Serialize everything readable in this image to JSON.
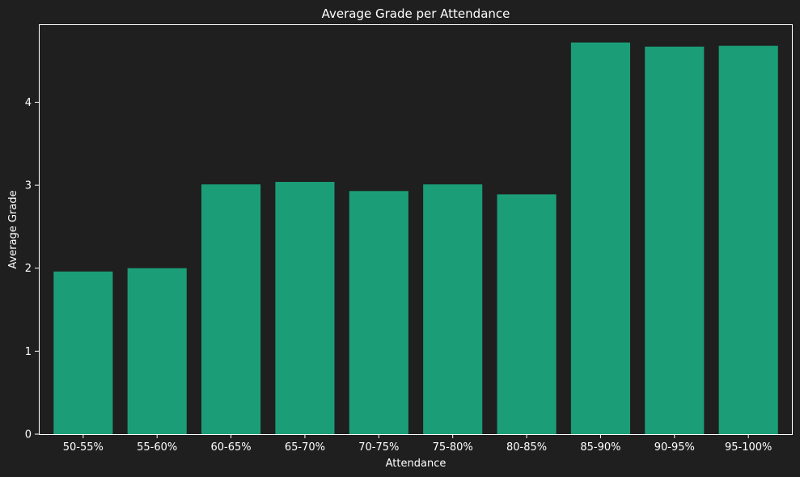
{
  "chart_data": {
    "type": "bar",
    "title": "Average Grade per Attendance",
    "xlabel": "Attendance",
    "ylabel": "Average Grade",
    "categories": [
      "50-55%",
      "55-60%",
      "60-65%",
      "65-70%",
      "70-75%",
      "75-80%",
      "80-85%",
      "85-90%",
      "90-95%",
      "95-100%"
    ],
    "values": [
      1.96,
      2.0,
      3.01,
      3.04,
      2.93,
      3.01,
      2.89,
      4.72,
      4.67,
      4.68
    ],
    "ylim": [
      0,
      4.94
    ],
    "yticks": [
      0,
      1,
      2,
      3,
      4
    ],
    "grid": false,
    "legend": "none",
    "colors": {
      "background": "#1f1f1f",
      "bar": "#1b9e77",
      "text": "#ffffff",
      "axes": "#ffffff"
    }
  }
}
